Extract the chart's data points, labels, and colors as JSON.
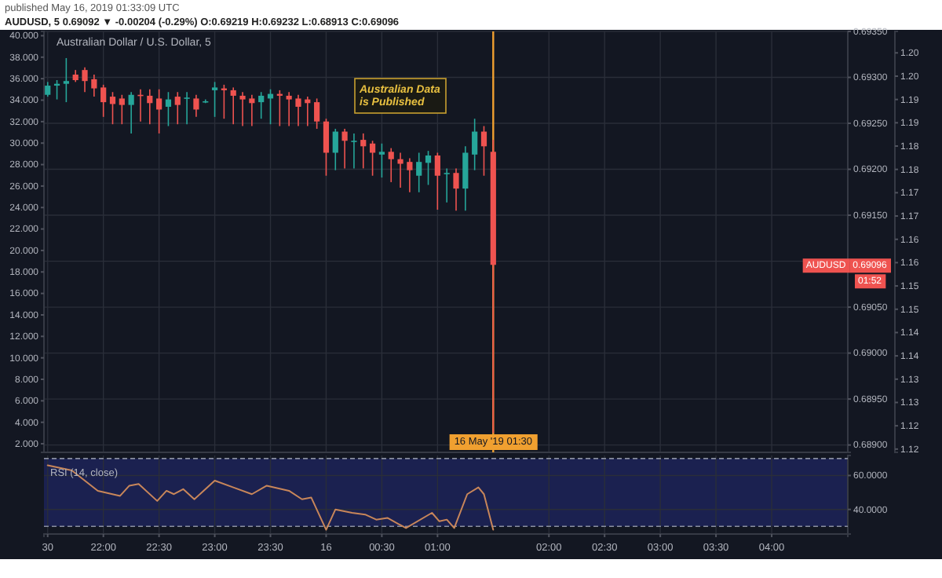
{
  "chart_data": [
    {
      "type": "candlestick",
      "title": "published May 16, 2019 01:33:09 UTC",
      "subtitle": "AUDUSD, 5 0.69092 ▼ -0.00204 (-0.29%) O:0.69219 H:0.69232 L:0.68913 C:0.69096",
      "x": [
        "2019-05-15T21:30",
        "2019-05-15T21:35",
        "2019-05-15T21:40",
        "2019-05-15T21:45",
        "2019-05-15T21:50",
        "2019-05-15T21:55",
        "2019-05-15T22:00",
        "2019-05-15T22:05",
        "2019-05-15T22:10",
        "2019-05-15T22:15",
        "2019-05-15T22:20",
        "2019-05-15T22:25",
        "2019-05-15T22:30",
        "2019-05-15T22:35",
        "2019-05-15T22:40",
        "2019-05-15T22:45",
        "2019-05-15T22:50",
        "2019-05-15T22:55",
        "2019-05-15T23:00",
        "2019-05-15T23:05",
        "2019-05-15T23:10",
        "2019-05-15T23:15",
        "2019-05-15T23:20",
        "2019-05-15T23:25",
        "2019-05-15T23:30",
        "2019-05-15T23:35",
        "2019-05-15T23:40",
        "2019-05-15T23:45",
        "2019-05-15T23:50",
        "2019-05-15T23:55",
        "2019-05-16T00:00",
        "2019-05-16T00:05",
        "2019-05-16T00:10",
        "2019-05-16T00:15",
        "2019-05-16T00:20",
        "2019-05-16T00:25",
        "2019-05-16T00:30",
        "2019-05-16T00:35",
        "2019-05-16T00:40",
        "2019-05-16T00:45",
        "2019-05-16T00:50",
        "2019-05-16T00:55",
        "2019-05-16T01:00",
        "2019-05-16T01:05",
        "2019-05-16T01:10",
        "2019-05-16T01:15",
        "2019-05-16T01:20",
        "2019-05-16T01:25",
        "2019-05-16T01:30"
      ],
      "ohlc": [
        [
          0.69281,
          0.69295,
          0.69279,
          0.69291
        ],
        [
          0.69291,
          0.69297,
          0.69276,
          0.69293
        ],
        [
          0.69293,
          0.69321,
          0.69273,
          0.69296
        ],
        [
          0.69303,
          0.69308,
          0.69295,
          0.69297
        ],
        [
          0.69308,
          0.69311,
          0.69284,
          0.69296
        ],
        [
          0.69298,
          0.69303,
          0.69279,
          0.69288
        ],
        [
          0.69289,
          0.69292,
          0.69257,
          0.69273
        ],
        [
          0.69279,
          0.69284,
          0.69249,
          0.69271
        ],
        [
          0.69277,
          0.69281,
          0.69249,
          0.6927
        ],
        [
          0.6927,
          0.69284,
          0.69239,
          0.69281
        ],
        [
          0.69281,
          0.69287,
          0.69252,
          0.6928
        ],
        [
          0.6928,
          0.69287,
          0.69249,
          0.69272
        ],
        [
          0.69277,
          0.69287,
          0.69239,
          0.69265
        ],
        [
          0.69268,
          0.69284,
          0.69247,
          0.69276
        ],
        [
          0.69279,
          0.69284,
          0.69249,
          0.6927
        ],
        [
          0.69278,
          0.69284,
          0.69249,
          0.69278
        ],
        [
          0.69277,
          0.69281,
          0.69257,
          0.69265
        ],
        [
          0.69274,
          0.69276,
          0.69272,
          0.69274
        ],
        [
          0.69286,
          0.69295,
          0.69257,
          0.69289
        ],
        [
          0.69288,
          0.69292,
          0.69255,
          0.69286
        ],
        [
          0.69286,
          0.69289,
          0.69249,
          0.6928
        ],
        [
          0.6928,
          0.69284,
          0.69247,
          0.69276
        ],
        [
          0.69277,
          0.69281,
          0.69247,
          0.69272
        ],
        [
          0.69273,
          0.69284,
          0.69255,
          0.6928
        ],
        [
          0.69277,
          0.69287,
          0.69249,
          0.69282
        ],
        [
          0.69282,
          0.69286,
          0.69247,
          0.6928
        ],
        [
          0.6928,
          0.69284,
          0.69247,
          0.69276
        ],
        [
          0.69277,
          0.69281,
          0.69247,
          0.69268
        ],
        [
          0.69276,
          0.69279,
          0.69247,
          0.69272
        ],
        [
          0.69273,
          0.69277,
          0.69244,
          0.69252
        ],
        [
          0.69252,
          0.69255,
          0.69193,
          0.69218
        ],
        [
          0.69218,
          0.69244,
          0.69199,
          0.69241
        ],
        [
          0.69241,
          0.69244,
          0.69201,
          0.69231
        ],
        [
          0.69231,
          0.69239,
          0.69201,
          0.69231
        ],
        [
          0.69232,
          0.69239,
          0.69201,
          0.69225
        ],
        [
          0.69228,
          0.69231,
          0.69193,
          0.69218
        ],
        [
          0.69216,
          0.69228,
          0.69191,
          0.69219
        ],
        [
          0.69219,
          0.69223,
          0.69186,
          0.69211
        ],
        [
          0.69211,
          0.69218,
          0.6918,
          0.69206
        ],
        [
          0.69208,
          0.69212,
          0.69175,
          0.69199
        ],
        [
          0.69193,
          0.69218,
          0.69175,
          0.69208
        ],
        [
          0.69207,
          0.6922,
          0.69183,
          0.69215
        ],
        [
          0.69215,
          0.69218,
          0.69156,
          0.69193
        ],
        [
          0.69196,
          0.69201,
          0.69164,
          0.69196
        ],
        [
          0.69196,
          0.69201,
          0.69155,
          0.69179
        ],
        [
          0.69179,
          0.69225,
          0.69155,
          0.69218
        ],
        [
          0.69216,
          0.69255,
          0.69199,
          0.69241
        ],
        [
          0.69241,
          0.69247,
          0.69193,
          0.69225
        ],
        [
          0.69219,
          0.69232,
          0.68913,
          0.69096
        ]
      ],
      "xlim": [
        "2019-05-15T21:28",
        "2019-05-16T04:41"
      ],
      "xticks": [
        {
          "value": "2019-05-15T21:30",
          "label": null
        },
        {
          "value": "2019-05-15T22:00",
          "label": null
        },
        {
          "value": "2019-05-15T22:30",
          "label": null
        },
        {
          "value": "2019-05-15T23:00",
          "label": null
        },
        {
          "value": "2019-05-15T23:30",
          "label": null
        },
        {
          "value": "2019-05-16T00:00",
          "label": null
        },
        {
          "value": "2019-05-16T00:30",
          "label": null
        },
        {
          "value": "2019-05-16T01:00",
          "label": null
        },
        {
          "value": "2019-05-16T02:00",
          "label": null
        },
        {
          "value": "2019-05-16T02:30",
          "label": null
        },
        {
          "value": "2019-05-16T03:00",
          "label": null
        },
        {
          "value": "2019-05-16T03:30",
          "label": null
        },
        {
          "value": "2019-05-16T04:00",
          "label": null
        }
      ],
      "ylim": [
        0.68892,
        0.6935
      ],
      "yticks": [
        {
          "value": 0.6935,
          "label": "0.69350"
        },
        {
          "value": 0.693,
          "label": "0.69300"
        },
        {
          "value": 0.6925,
          "label": "0.69250"
        },
        {
          "value": 0.692,
          "label": "0.69200"
        },
        {
          "value": 0.6915,
          "label": "0.69150"
        },
        {
          "value": 0.691,
          "label": null
        },
        {
          "value": 0.6905,
          "label": "0.69050"
        },
        {
          "value": 0.69,
          "label": "0.69000"
        },
        {
          "value": 0.6895,
          "label": "0.68950"
        },
        {
          "value": 0.689,
          "label": "0.68900"
        }
      ],
      "y2lim": [
        1.1193,
        1.2096
      ],
      "y2ticks": [
        {
          "value": 1.205,
          "label": "1.20"
        },
        {
          "value": 1.2,
          "label": "1.20"
        },
        {
          "value": 1.195,
          "label": "1.19"
        },
        {
          "value": 1.19,
          "label": "1.19"
        },
        {
          "value": 1.185,
          "label": "1.18"
        },
        {
          "value": 1.18,
          "label": "1.18"
        },
        {
          "value": 1.175,
          "label": "1.17"
        },
        {
          "value": 1.17,
          "label": "1.17"
        },
        {
          "value": 1.165,
          "label": "1.16"
        },
        {
          "value": 1.16,
          "label": "1.16"
        },
        {
          "value": 1.155,
          "label": "1.15"
        },
        {
          "value": 1.15,
          "label": "1.15"
        },
        {
          "value": 1.145,
          "label": "1.14"
        },
        {
          "value": 1.14,
          "label": "1.14"
        },
        {
          "value": 1.135,
          "label": "1.13"
        },
        {
          "value": 1.13,
          "label": "1.13"
        },
        {
          "value": 1.125,
          "label": "1.12"
        },
        {
          "value": 1.12,
          "label": "1.12"
        }
      ],
      "y3lim": [
        1.2,
        40.4
      ],
      "y3ticks": [
        {
          "value": 40,
          "label": "40.000"
        },
        {
          "value": 38,
          "label": "38.000"
        },
        {
          "value": 36,
          "label": "36.000"
        },
        {
          "value": 34,
          "label": "34.000"
        },
        {
          "value": 32,
          "label": "32.000"
        },
        {
          "value": 30,
          "label": "30.000"
        },
        {
          "value": 28,
          "label": "28.000"
        },
        {
          "value": 26,
          "label": "26.000"
        },
        {
          "value": 24,
          "label": "24.000"
        },
        {
          "value": 22,
          "label": "22.000"
        },
        {
          "value": 20,
          "label": "20.000"
        },
        {
          "value": 18,
          "label": "18.000"
        },
        {
          "value": 16,
          "label": "16.000"
        },
        {
          "value": 14,
          "label": "14.000"
        },
        {
          "value": 12,
          "label": "12.000"
        },
        {
          "value": 10,
          "label": "10.000"
        },
        {
          "value": 8,
          "label": "8.000"
        },
        {
          "value": 6,
          "label": "6.000"
        },
        {
          "value": 4,
          "label": "4.000"
        },
        {
          "value": 2,
          "label": "2.000"
        }
      ],
      "tick_labels": "y",
      "grid": true,
      "ref_lines": [
        {
          "axis": "x",
          "value": "2019-05-16T01:30",
          "label": "16 May '19 01:30",
          "color": "#f0a030"
        }
      ],
      "annotations": [
        "Australian Dollar / U.S. Dollar, 5",
        "Australian Data is Published",
        "AUDUSD",
        "0.69096",
        "01:52"
      ]
    },
    {
      "type": "line",
      "title": "RSI (14, close)",
      "x": [
        "2019-05-15T21:30",
        "2019-05-15T21:43",
        "2019-05-15T21:57",
        "2019-05-15T22:09",
        "2019-05-15T22:14",
        "2019-05-15T22:19",
        "2019-05-15T22:29",
        "2019-05-15T22:34",
        "2019-05-15T22:38",
        "2019-05-15T22:43",
        "2019-05-15T22:49",
        "2019-05-15T23:00",
        "2019-05-15T23:10",
        "2019-05-15T23:20",
        "2019-05-15T23:28",
        "2019-05-15T23:40",
        "2019-05-15T23:47",
        "2019-05-15T23:52",
        "2019-05-16T00:00",
        "2019-05-16T00:05",
        "2019-05-16T00:14",
        "2019-05-16T00:21",
        "2019-05-16T00:27",
        "2019-05-16T00:33",
        "2019-05-16T00:43",
        "2019-05-16T00:57",
        "2019-05-16T01:01",
        "2019-05-16T01:05",
        "2019-05-16T01:09",
        "2019-05-16T01:16",
        "2019-05-16T01:22",
        "2019-05-16T01:25",
        "2019-05-16T01:30"
      ],
      "series": [
        {
          "color": "#c8865a",
          "values": [
            66,
            63,
            51,
            48,
            54,
            55,
            45,
            51,
            49,
            52,
            46,
            57,
            53,
            49,
            54,
            51,
            46,
            47,
            28,
            40,
            38,
            37,
            34,
            35,
            29,
            38,
            33,
            34,
            29,
            49,
            53,
            49,
            28
          ]
        }
      ],
      "xlim": [
        "2019-05-15T21:28",
        "2019-05-16T04:41"
      ],
      "xticks": [
        {
          "value": "2019-05-15T21:30",
          "label": "30"
        },
        {
          "value": "2019-05-15T22:00",
          "label": "22:00"
        },
        {
          "value": "2019-05-15T22:30",
          "label": "22:30"
        },
        {
          "value": "2019-05-15T23:00",
          "label": "23:00"
        },
        {
          "value": "2019-05-15T23:30",
          "label": "23:30"
        },
        {
          "value": "2019-05-16T00:00",
          "label": "16"
        },
        {
          "value": "2019-05-16T00:30",
          "label": "00:30"
        },
        {
          "value": "2019-05-16T01:00",
          "label": "01:00"
        },
        {
          "value": "2019-05-16T02:00",
          "label": "02:00"
        },
        {
          "value": "2019-05-16T02:30",
          "label": "02:30"
        },
        {
          "value": "2019-05-16T03:00",
          "label": "03:00"
        },
        {
          "value": "2019-05-16T03:30",
          "label": "03:30"
        },
        {
          "value": "2019-05-16T04:00",
          "label": "04:00"
        }
      ],
      "ylim": [
        25.5,
        71.8
      ],
      "yticks": [
        {
          "value": 60,
          "label": "60.0000"
        },
        {
          "value": 40,
          "label": "40.0000"
        }
      ],
      "grid": true,
      "ref_lines": [
        {
          "axis": "y",
          "value": 70,
          "line_style": "dashed",
          "color": "#8a8fa0"
        },
        {
          "axis": "y",
          "value": 30,
          "line_style": "dashed",
          "color": "#8a8fa0"
        }
      ],
      "bands": [
        {
          "axis": "y",
          "from": 30,
          "to": 70,
          "color": "#1b2150"
        }
      ]
    }
  ]
}
